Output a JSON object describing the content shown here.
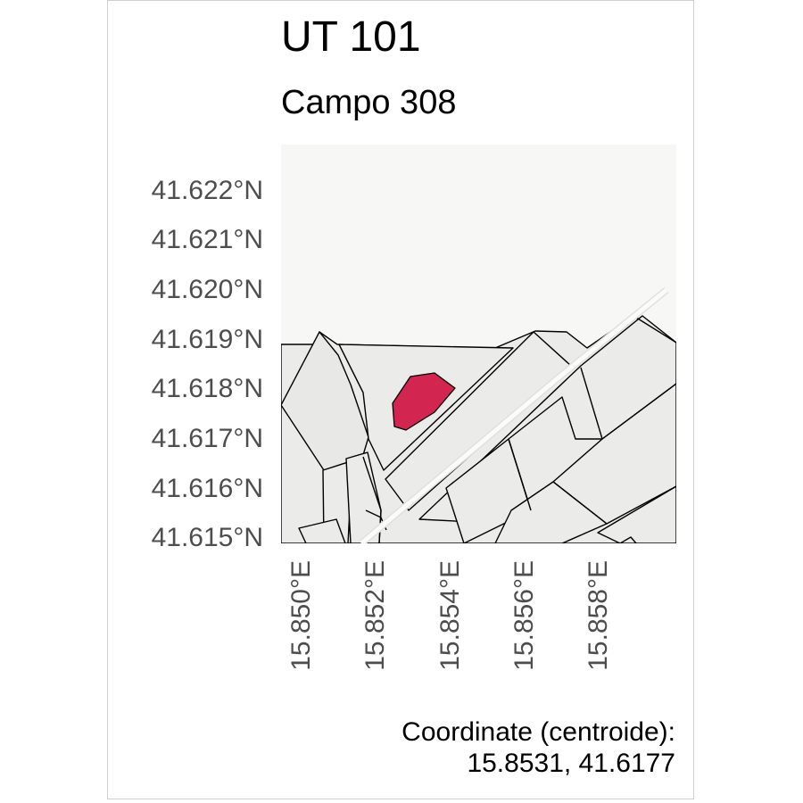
{
  "title": "UT 101",
  "subtitle": "Campo 308",
  "latitude_ticks": [
    "41.622°N",
    "41.621°N",
    "41.620°N",
    "41.619°N",
    "41.618°N",
    "41.617°N",
    "41.616°N",
    "41.615°N"
  ],
  "longitude_ticks": [
    "15.850°E",
    "15.852°E",
    "15.854°E",
    "15.856°E",
    "15.858°E"
  ],
  "caption": {
    "line1": "Coordinate (centroide):",
    "line2": "15.8531, 41.6177"
  },
  "colors": {
    "map_background": "#f7f7f5",
    "parcel_fill": "#ebebea",
    "parcel_stroke": "#000000",
    "highlight_fill": "#d22550",
    "road_color": "#fbfbfa"
  }
}
